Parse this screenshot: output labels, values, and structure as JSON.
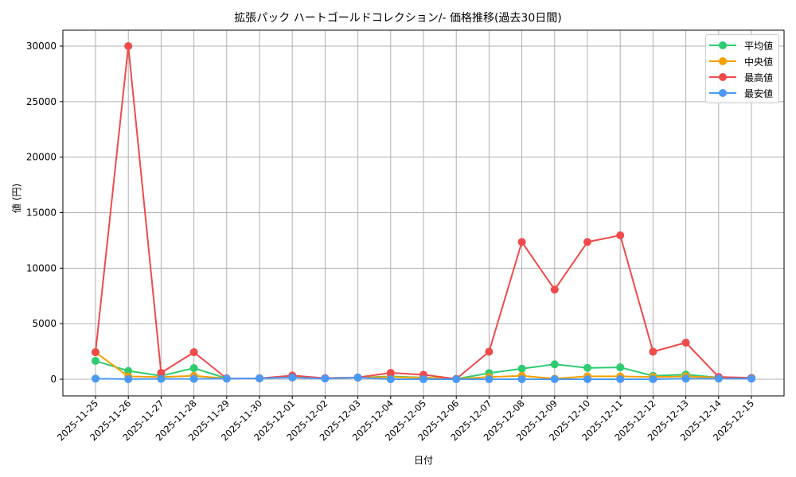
{
  "chart_data": {
    "type": "line",
    "title": "拡張パック ハートゴールドコレクション/- 価格推移(過去30日間)",
    "xlabel": "日付",
    "ylabel": "値 (円)",
    "ylim": [
      -1500,
      31500
    ],
    "yticks": [
      0,
      5000,
      10000,
      15000,
      20000,
      25000,
      30000
    ],
    "grid": true,
    "legend_position": "upper right",
    "x": [
      "2025-11-25",
      "2025-11-26",
      "2025-11-27",
      "2025-11-28",
      "2025-11-29",
      "2025-11-30",
      "2025-12-01",
      "2025-12-02",
      "2025-12-03",
      "2025-12-04",
      "2025-12-05",
      "2025-12-06",
      "2025-12-07",
      "2025-12-08",
      "2025-12-09",
      "2025-12-10",
      "2025-12-11",
      "2025-12-12",
      "2025-12-13",
      "2025-12-14",
      "2025-12-15"
    ],
    "series": [
      {
        "name": "平均値",
        "color": "#2ecc71",
        "values": [
          1650,
          750,
          300,
          1000,
          70,
          80,
          250,
          90,
          150,
          250,
          150,
          30,
          550,
          950,
          1340,
          1020,
          1070,
          300,
          420,
          150,
          100
        ]
      },
      {
        "name": "中央値",
        "color": "#f5a000",
        "values": [
          2430,
          250,
          200,
          300,
          70,
          80,
          200,
          90,
          150,
          200,
          120,
          30,
          190,
          310,
          50,
          260,
          260,
          200,
          250,
          150,
          100
        ]
      },
      {
        "name": "最高値",
        "color": "#f04a4a",
        "values": [
          2430,
          30000,
          570,
          2430,
          70,
          80,
          330,
          100,
          160,
          570,
          400,
          30,
          2480,
          12360,
          8070,
          12360,
          12960,
          2480,
          3290,
          210,
          120
        ]
      },
      {
        "name": "最安値",
        "color": "#4a9af5",
        "values": [
          50,
          10,
          30,
          30,
          50,
          80,
          150,
          60,
          150,
          0,
          0,
          0,
          0,
          0,
          0,
          0,
          0,
          0,
          50,
          50,
          50
        ]
      }
    ]
  },
  "labels": {
    "title": "拡張パック ハートゴールドコレクション/- 価格推移(過去30日間)",
    "xlabel": "日付",
    "ylabel": "値 (円)"
  }
}
